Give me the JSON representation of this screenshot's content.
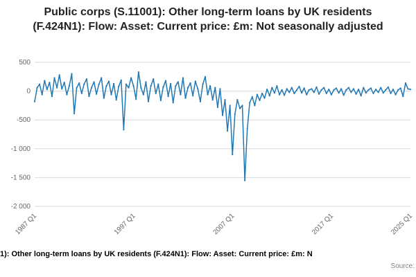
{
  "title": "Public corps (S.11001): Other long-term loans by UK residents (F.424N1): Flow: Asset: Current price: £m: Not seasonally adjusted",
  "footer": {
    "caption": "1): Other long-term loans by UK residents (F.424N1): Flow: Asset: Current price: £m: N",
    "source": "Source:"
  },
  "chart_data": {
    "type": "line",
    "title": "Public corps (S.11001): Other long-term loans by UK residents (F.424N1): Flow: Asset: Current price: £m: Not seasonally adjusted",
    "frequency": "quarterly",
    "x_start": "1987 Q1",
    "x_end": "2025 Q1",
    "x_tick_labels": [
      "1987 Q1",
      "1997 Q1",
      "2007 Q1",
      "2017 Q1",
      "2025 Q1"
    ],
    "x_tick_indices": [
      0,
      40,
      80,
      120,
      152
    ],
    "ylim": [
      -2000,
      500
    ],
    "y_ticks": [
      500,
      0,
      -500,
      -1000,
      -1500,
      -2000
    ],
    "y_tick_labels": [
      "500",
      "0",
      "-500",
      "-1 000",
      "-1 500",
      "-2 000"
    ],
    "grid": true,
    "legend": "none",
    "line_color": "#1f77b4",
    "grid_color": "#d8d8d8",
    "axis_label_color": "#666666",
    "series": [
      {
        "values": [
          -180,
          60,
          120,
          -60,
          180,
          30,
          150,
          -90,
          230,
          60,
          280,
          40,
          150,
          -60,
          90,
          300,
          -390,
          60,
          140,
          -40,
          120,
          210,
          -90,
          60,
          160,
          -50,
          120,
          230,
          -120,
          90,
          170,
          -60,
          130,
          -150,
          80,
          190,
          -670,
          120,
          60,
          230,
          90,
          -140,
          330,
          60,
          -60,
          160,
          -180,
          90,
          210,
          -40,
          120,
          -160,
          70,
          180,
          -90,
          130,
          -200,
          90,
          160,
          -60,
          230,
          -120,
          60,
          140,
          -80,
          170,
          40,
          -180,
          120,
          250,
          -60,
          90,
          -150,
          60,
          -280,
          40,
          -420,
          -150,
          -690,
          -250,
          -1100,
          -400,
          -150,
          -300,
          -250,
          -1550,
          -650,
          -200,
          -100,
          -250,
          -60,
          -160,
          -40,
          -120,
          30,
          -80,
          60,
          -30,
          90,
          -60,
          20,
          -70,
          40,
          -20,
          60,
          -40,
          20,
          80,
          -30,
          50,
          -60,
          20,
          40,
          -20,
          70,
          -50,
          20,
          60,
          -40,
          30,
          -60,
          20,
          50,
          -30,
          40,
          -70,
          20,
          60,
          -20,
          40,
          -50,
          30,
          -80,
          60,
          -30,
          20,
          50,
          -40,
          30,
          -20,
          60,
          -30,
          20,
          70,
          -40,
          30,
          -60,
          20,
          50,
          -90,
          140,
          40,
          30
        ]
      }
    ]
  }
}
